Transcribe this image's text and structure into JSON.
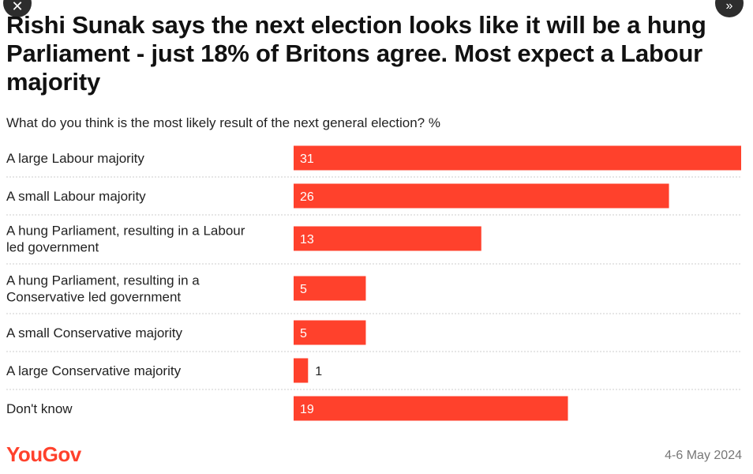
{
  "nav": {
    "close_icon": "close-icon",
    "next_icon": "double-chevron-right-icon"
  },
  "title": "Rishi Sunak says the next election looks like it will be a hung Parliament - just 18% of Britons agree. Most expect a Labour majority",
  "subtitle": "What do you think is the most likely result of the next general election? %",
  "footer": {
    "logo": "YouGov",
    "date": "4-6 May 2024",
    "logo_color": "#ff412c"
  },
  "colors": {
    "bar": "#ff412c",
    "grid": "#cccccc"
  },
  "chart_data": {
    "type": "bar",
    "orientation": "horizontal",
    "categories": [
      [
        "A large Labour majority"
      ],
      [
        "A small Labour majority"
      ],
      [
        "A hung Parliament, resulting in a Labour",
        "led government"
      ],
      [
        "A hung Parliament, resulting in a",
        "Conservative led government"
      ],
      [
        "A small Conservative majority"
      ],
      [
        "A large Conservative majority"
      ],
      [
        "Don't know"
      ]
    ],
    "values": [
      31,
      26,
      13,
      5,
      5,
      1,
      19
    ],
    "xlim": [
      0,
      31
    ],
    "grid": false,
    "legend": "none"
  }
}
